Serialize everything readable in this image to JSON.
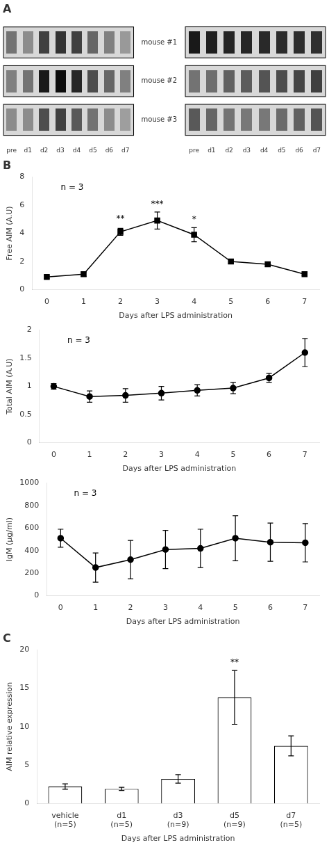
{
  "chart_data": [
    {
      "type": "heatmap",
      "title": "A",
      "x": [
        "pre",
        "d1",
        "d2",
        "d3",
        "d4",
        "d5",
        "d6",
        "d7"
      ],
      "y": [
        "mouse #1",
        "mouse #2",
        "mouse #3"
      ],
      "cells": [
        [
          0.55,
          0.45,
          0.75,
          0.8,
          0.75,
          0.6,
          0.5,
          0.4
        ],
        [
          0.5,
          0.55,
          0.9,
          0.95,
          0.85,
          0.7,
          0.6,
          0.5
        ],
        [
          0.45,
          0.45,
          0.7,
          0.75,
          0.65,
          0.55,
          0.45,
          0.38
        ]
      ]
    },
    {
      "type": "heatmap",
      "x": [
        "pre",
        "d1",
        "d2",
        "d3",
        "d4",
        "d5",
        "d6",
        "d7"
      ],
      "y": [
        "mouse #1",
        "mouse #2",
        "mouse #3"
      ],
      "cells": [
        [
          0.9,
          0.88,
          0.86,
          0.85,
          0.84,
          0.83,
          0.82,
          0.81
        ],
        [
          0.55,
          0.57,
          0.62,
          0.64,
          0.67,
          0.7,
          0.73,
          0.75
        ],
        [
          0.65,
          0.6,
          0.55,
          0.53,
          0.53,
          0.58,
          0.62,
          0.67
        ]
      ],
      "tick_labels": "x"
    },
    {
      "type": "line",
      "title": "B",
      "x": [
        0,
        1,
        2,
        3,
        4,
        5,
        6,
        7
      ],
      "values": [
        0.9,
        1.1,
        4.1,
        4.9,
        3.9,
        2.0,
        1.8,
        1.1
      ],
      "yerr": [
        0.1,
        0.15,
        0.25,
        0.6,
        0.5,
        0.15,
        0.15,
        0.1
      ],
      "color": "#000000",
      "marker": "square",
      "xlabel": "Days after LPS administration",
      "ylabel": "Free AIM (A.U)",
      "xlim": [
        -0.4,
        7.4
      ],
      "xticks": [
        0,
        1,
        2,
        3,
        4,
        5,
        6,
        7
      ],
      "ylim": [
        0,
        8
      ],
      "yticks": [
        0,
        2,
        4,
        6,
        8
      ],
      "grid": false,
      "annotations": [
        {
          "x": 2,
          "y": 4.7,
          "text": "**"
        },
        {
          "x": 3,
          "y": 5.75,
          "text": "***"
        },
        {
          "x": 4,
          "y": 4.65,
          "text": "*"
        },
        {
          "text": "n = 3"
        }
      ]
    },
    {
      "type": "line",
      "x": [
        0,
        1,
        2,
        3,
        4,
        5,
        6,
        7
      ],
      "values": [
        1.0,
        0.82,
        0.84,
        0.88,
        0.93,
        0.97,
        1.15,
        1.6
      ],
      "yerr": [
        0.05,
        0.1,
        0.12,
        0.12,
        0.1,
        0.1,
        0.08,
        0.25
      ],
      "color": "#000000",
      "marker": "circle",
      "xlabel": "Days after LPS administration",
      "ylabel": "Total AIM (A.U)",
      "xlim": [
        -0.4,
        7.4
      ],
      "xticks": [
        0,
        1,
        2,
        3,
        4,
        5,
        6,
        7
      ],
      "ylim": [
        0,
        2
      ],
      "yticks": [
        0,
        0.5,
        1,
        1.5,
        2
      ],
      "grid": false,
      "annotations": [
        {
          "text": "n = 3"
        }
      ]
    },
    {
      "type": "line",
      "x": [
        0,
        1,
        2,
        3,
        4,
        5,
        6,
        7
      ],
      "values": [
        510,
        250,
        320,
        410,
        420,
        510,
        475,
        470
      ],
      "yerr": [
        80,
        130,
        170,
        170,
        170,
        200,
        170,
        170
      ],
      "color": "#000000",
      "marker": "circle",
      "xlabel": "Days after LPS administration",
      "ylabel": "IgM (μg/ml)",
      "xlim": [
        -0.4,
        7.4
      ],
      "xticks": [
        0,
        1,
        2,
        3,
        4,
        5,
        6,
        7
      ],
      "ylim": [
        0,
        1000
      ],
      "yticks": [
        0,
        200,
        400,
        600,
        800,
        1000
      ],
      "grid": false,
      "annotations": [
        {
          "text": "n = 3"
        }
      ]
    },
    {
      "type": "bar",
      "title": "C",
      "categories": [
        "vehicle\n(n=5)",
        "d1\n(n=5)",
        "d3\n(n=9)",
        "d5\n(n=9)",
        "d7\n(n=5)"
      ],
      "values": [
        2.2,
        1.9,
        3.2,
        13.8,
        7.5
      ],
      "yerr": [
        0.35,
        0.2,
        0.55,
        3.5,
        1.3
      ],
      "color": "#ffffff",
      "xlabel": "Days after LPS administration",
      "ylabel": "AIM relative expression",
      "ylim": [
        0,
        20
      ],
      "yticks": [
        0,
        5,
        10,
        15,
        20
      ],
      "grid": false,
      "annotations": [
        {
          "x": "d5\n(n=9)",
          "y": 17.8,
          "text": "**"
        }
      ]
    }
  ]
}
